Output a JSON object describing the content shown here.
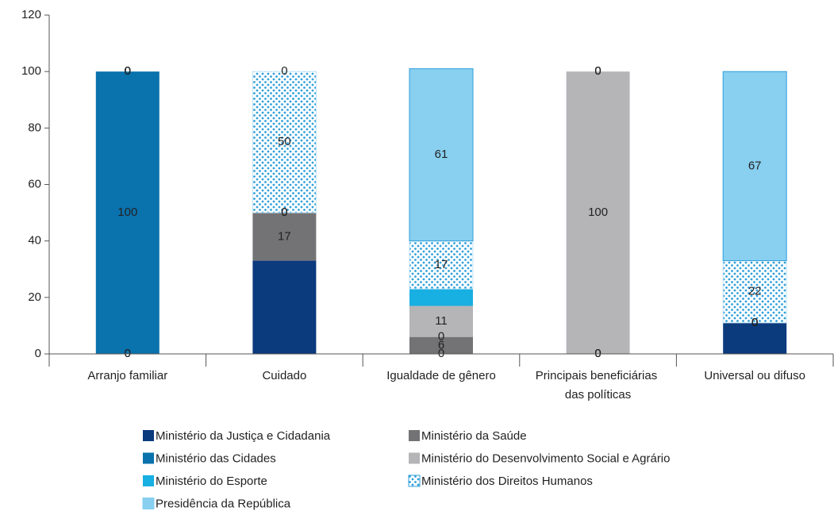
{
  "chart_data": {
    "type": "stacked_bar",
    "categories": [
      "Arranjo familiar",
      "Cuidado",
      "Igualdade de gênero",
      "Principais beneficiárias das políticas",
      "Universal ou difuso"
    ],
    "ylim": [
      0,
      120
    ],
    "yticks": [
      0,
      20,
      40,
      60,
      80,
      100,
      120
    ],
    "series": [
      {
        "name": "Ministério da Justiça e Cidadania",
        "color": "#0b3a7d",
        "values": [
          0,
          33,
          0,
          0,
          11
        ],
        "value_labels": [
          "0",
          null,
          "0",
          "0",
          null
        ]
      },
      {
        "name": "Ministério da Saúde",
        "color": "#737376",
        "values": [
          0,
          17,
          6,
          0,
          0
        ],
        "value_labels": [
          "0",
          "17",
          "6",
          "0",
          "0"
        ]
      },
      {
        "name": "Ministério das Cidades",
        "color": "#0a72ad",
        "values": [
          100,
          0,
          0,
          0,
          0
        ],
        "value_labels": [
          "100",
          "0",
          "0",
          "0",
          "0"
        ]
      },
      {
        "name": "Ministério do Desenvolvimento Social e Agrário",
        "color": "#b5b5b8",
        "values": [
          0,
          0,
          11,
          100,
          0
        ],
        "value_labels": [
          "0",
          "0",
          "11",
          "100",
          "0"
        ]
      },
      {
        "name": "Ministério do Esporte",
        "color": "#18afe2",
        "values": [
          0,
          0,
          6,
          0,
          0
        ],
        "value_labels": [
          "0",
          "0",
          null,
          "0",
          "0"
        ]
      },
      {
        "name": "Ministério dos Direitos Humanos",
        "color": "#2f9fd9",
        "pattern": "dots",
        "values": [
          0,
          50,
          17,
          0,
          22
        ],
        "value_labels": [
          "0",
          "50",
          "17",
          "0",
          "22"
        ]
      },
      {
        "name": "Presidência da República",
        "color": "#88cff0",
        "values": [
          0,
          0,
          61,
          0,
          67
        ],
        "value_labels": [
          "0",
          "0",
          "61",
          "0",
          "67"
        ]
      }
    ]
  }
}
